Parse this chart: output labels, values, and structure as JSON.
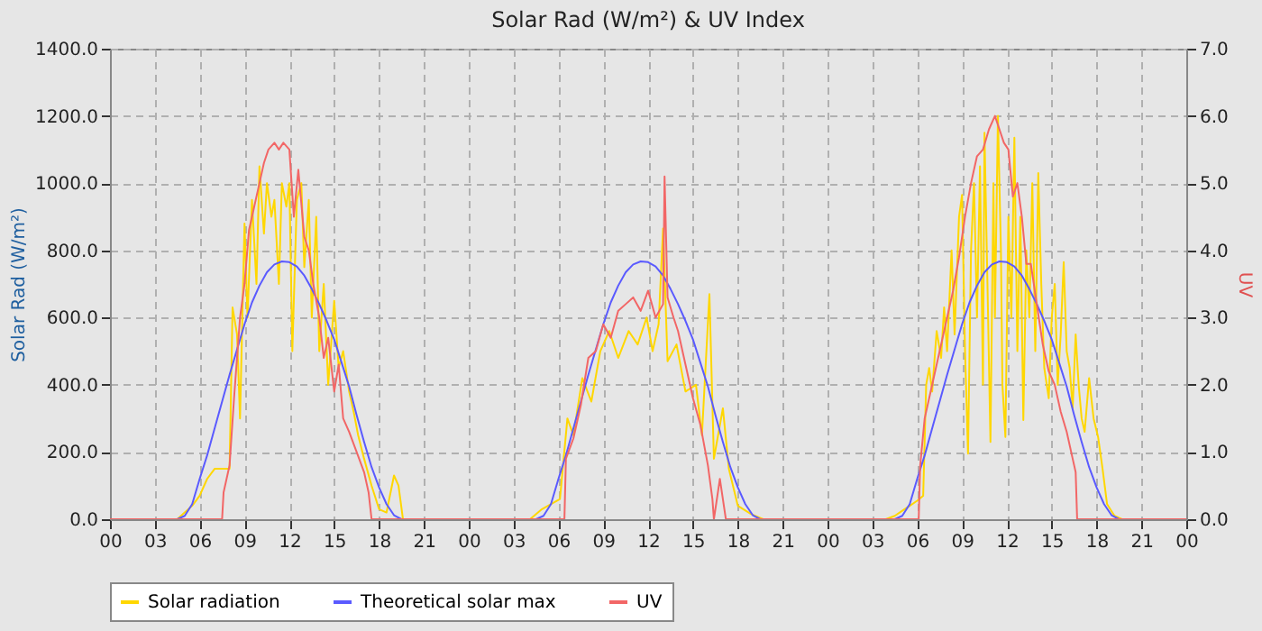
{
  "chart_data": {
    "type": "line",
    "title": "Solar Rad (W/m²) &  UV Index",
    "ylabel": "Solar Rad (W/m²)",
    "y2label": "UV",
    "xlim": [
      0,
      72
    ],
    "xticks": [
      {
        "value": 0,
        "label": "00"
      },
      {
        "value": 3,
        "label": "03"
      },
      {
        "value": 6,
        "label": "06"
      },
      {
        "value": 9,
        "label": "09"
      },
      {
        "value": 12,
        "label": "12"
      },
      {
        "value": 15,
        "label": "15"
      },
      {
        "value": 18,
        "label": "18"
      },
      {
        "value": 21,
        "label": "21"
      },
      {
        "value": 24,
        "label": "00"
      },
      {
        "value": 27,
        "label": "03"
      },
      {
        "value": 30,
        "label": "06"
      },
      {
        "value": 33,
        "label": "09"
      },
      {
        "value": 36,
        "label": "12"
      },
      {
        "value": 39,
        "label": "15"
      },
      {
        "value": 42,
        "label": "18"
      },
      {
        "value": 45,
        "label": "21"
      },
      {
        "value": 48,
        "label": "00"
      },
      {
        "value": 51,
        "label": "03"
      },
      {
        "value": 54,
        "label": "06"
      },
      {
        "value": 57,
        "label": "09"
      },
      {
        "value": 60,
        "label": "12"
      },
      {
        "value": 63,
        "label": "15"
      },
      {
        "value": 66,
        "label": "18"
      },
      {
        "value": 69,
        "label": "21"
      },
      {
        "value": 72,
        "label": "00"
      }
    ],
    "ylim": [
      0,
      1400
    ],
    "yticks": [
      {
        "value": 0,
        "label": "0.0"
      },
      {
        "value": 200,
        "label": "200.0"
      },
      {
        "value": 400,
        "label": "400.0"
      },
      {
        "value": 600,
        "label": "600.0"
      },
      {
        "value": 800,
        "label": "800.0"
      },
      {
        "value": 1000,
        "label": "1000.0"
      },
      {
        "value": 1200,
        "label": "1200.0"
      },
      {
        "value": 1400,
        "label": "1400.0"
      }
    ],
    "y2lim": [
      0,
      7
    ],
    "y2ticks": [
      {
        "value": 0,
        "label": "0.0"
      },
      {
        "value": 1,
        "label": "1.0"
      },
      {
        "value": 2,
        "label": "2.0"
      },
      {
        "value": 3,
        "label": "3.0"
      },
      {
        "value": 4,
        "label": "4.0"
      },
      {
        "value": 5,
        "label": "5.0"
      },
      {
        "value": 6,
        "label": "6.0"
      },
      {
        "value": 7,
        "label": "7.0"
      }
    ],
    "grid": true,
    "legend": "bottom",
    "line_style": "solid",
    "marker": "none",
    "series": [
      {
        "name": "Solar radiation",
        "color": "#ffd700",
        "x": [
          0,
          4.5,
          5,
          5.5,
          6,
          6.5,
          7,
          7.5,
          8,
          8.2,
          8.5,
          8.7,
          9,
          9.2,
          9.5,
          9.8,
          10,
          10.3,
          10.5,
          10.8,
          11,
          11.3,
          11.5,
          11.8,
          12,
          12.2,
          12.5,
          12.8,
          13,
          13.3,
          13.5,
          13.8,
          14,
          14.3,
          14.6,
          15,
          15.3,
          15.6,
          16,
          16.3,
          16.6,
          17,
          17.5,
          18,
          18.5,
          19,
          19.3,
          19.6,
          28.1,
          28.9,
          30.1,
          30.6,
          31,
          31.6,
          32.2,
          32.8,
          33.4,
          34,
          34.7,
          35.3,
          35.9,
          36.3,
          36.7,
          37,
          37.3,
          37.9,
          38.5,
          39.2,
          39.6,
          40.1,
          40.4,
          41,
          41.4,
          42,
          42.9,
          43.7,
          51.9,
          52.5,
          53,
          53.5,
          54,
          54.4,
          54.6,
          54.8,
          55,
          55.3,
          55.6,
          55.8,
          56,
          56.3,
          56.5,
          56.8,
          57,
          57.2,
          57.4,
          57.6,
          57.8,
          58,
          58.2,
          58.4,
          58.5,
          58.7,
          58.9,
          59.1,
          59.2,
          59.4,
          59.6,
          59.7,
          59.9,
          60.1,
          60.3,
          60.5,
          60.7,
          60.9,
          61.1,
          61.3,
          61.5,
          61.7,
          61.9,
          62.1,
          62.3,
          62.5,
          62.8,
          63,
          63.2,
          63.4,
          63.6,
          63.8,
          64,
          64.2,
          64.4,
          64.6,
          64.8,
          65,
          65.2,
          65.5,
          65.8,
          66.1,
          66.4,
          66.7,
          67.2,
          67.7,
          72
        ],
        "values": [
          0,
          0,
          20,
          40,
          70,
          120,
          150,
          150,
          150,
          630,
          550,
          300,
          880,
          600,
          950,
          700,
          1050,
          850,
          1000,
          900,
          950,
          700,
          1000,
          930,
          1000,
          500,
          950,
          1000,
          750,
          950,
          600,
          900,
          500,
          700,
          400,
          650,
          450,
          500,
          380,
          320,
          250,
          180,
          100,
          30,
          20,
          130,
          100,
          0,
          0,
          30,
          60,
          300,
          250,
          420,
          350,
          500,
          560,
          480,
          560,
          520,
          600,
          500,
          580,
          865,
          470,
          520,
          380,
          400,
          250,
          670,
          180,
          330,
          150,
          40,
          15,
          0,
          0,
          10,
          25,
          40,
          55,
          70,
          400,
          450,
          380,
          560,
          480,
          630,
          500,
          800,
          550,
          900,
          965,
          500,
          195,
          800,
          1000,
          600,
          1050,
          400,
          1150,
          700,
          230,
          1000,
          600,
          1200,
          800,
          400,
          245,
          900,
          600,
          1135,
          500,
          900,
          295,
          800,
          600,
          1000,
          500,
          1030,
          700,
          450,
          360,
          600,
          700,
          400,
          550,
          765,
          500,
          450,
          330,
          550,
          400,
          300,
          260,
          420,
          300,
          245,
          150,
          45,
          10,
          0,
          0
        ]
      },
      {
        "name": "Theoretical solar max",
        "color": "#5a5aff",
        "x": [
          0,
          4.5,
          5,
          5.5,
          6,
          6.5,
          7,
          7.5,
          8,
          8.5,
          9,
          9.5,
          10,
          10.5,
          11,
          11.5,
          12,
          12.5,
          13,
          13.5,
          14,
          14.5,
          15,
          15.5,
          16,
          16.5,
          17,
          17.5,
          18,
          18.5,
          19,
          19.5,
          28.5,
          29,
          29.5,
          30,
          30.5,
          31,
          31.5,
          32,
          32.5,
          33,
          33.5,
          34,
          34.5,
          35,
          35.5,
          36,
          36.5,
          37,
          37.5,
          38,
          38.5,
          39,
          39.5,
          40,
          40.5,
          41,
          41.5,
          42,
          42.5,
          43,
          43.5,
          52.5,
          53,
          53.5,
          54,
          54.5,
          55,
          55.5,
          56,
          56.5,
          57,
          57.5,
          58,
          58.5,
          59,
          59.5,
          60,
          60.5,
          61,
          61.5,
          62,
          62.5,
          63,
          63.5,
          64,
          64.5,
          65,
          65.5,
          66,
          66.5,
          67,
          67.5,
          72
        ],
        "values": [
          0,
          0,
          10,
          45,
          120,
          190,
          270,
          350,
          430,
          505,
          580,
          645,
          695,
          735,
          758,
          767,
          765,
          752,
          725,
          685,
          640,
          590,
          535,
          465,
          395,
          310,
          230,
          155,
          95,
          45,
          12,
          0,
          0,
          10,
          45,
          120,
          190,
          270,
          350,
          430,
          505,
          580,
          645,
          695,
          735,
          758,
          767,
          765,
          752,
          725,
          685,
          640,
          590,
          535,
          465,
          395,
          310,
          230,
          155,
          95,
          45,
          12,
          0,
          0,
          10,
          45,
          120,
          190,
          270,
          350,
          430,
          505,
          580,
          645,
          695,
          735,
          758,
          767,
          765,
          752,
          725,
          685,
          640,
          590,
          535,
          465,
          395,
          310,
          230,
          155,
          95,
          45,
          12,
          0,
          0
        ]
      },
      {
        "name": "UV",
        "color": "#f26666",
        "axis": "y2",
        "x": [
          0,
          7.5,
          7.6,
          8,
          8.3,
          8.7,
          9,
          9.3,
          9.6,
          10,
          10.3,
          10.6,
          11,
          11.3,
          11.6,
          12,
          12.3,
          12.6,
          13,
          13.3,
          13.6,
          14,
          14.3,
          14.6,
          15,
          15.3,
          15.6,
          16,
          16.5,
          17,
          17.3,
          17.5,
          30.4,
          30.5,
          31,
          31.5,
          32,
          32.5,
          33,
          33.5,
          34,
          34.5,
          35,
          35.5,
          36,
          36.5,
          37,
          37.1,
          37.3,
          37.7,
          38,
          38.5,
          39,
          39.5,
          40,
          40.3,
          40.4,
          40.8,
          41,
          41.2,
          54.1,
          54.2,
          54.5,
          54.8,
          55.2,
          55.6,
          56,
          56.4,
          56.8,
          57.2,
          57.6,
          58,
          58.4,
          58.8,
          59.2,
          59.5,
          59.8,
          60.1,
          60.4,
          60.7,
          61,
          61.3,
          61.6,
          62,
          62.4,
          62.8,
          63.2,
          63.6,
          64,
          64.4,
          64.6,
          64.7,
          72
        ],
        "values": [
          0,
          0,
          0.4,
          0.8,
          1.8,
          3.0,
          3.5,
          4.3,
          4.6,
          5.0,
          5.3,
          5.5,
          5.6,
          5.5,
          5.6,
          5.5,
          4.5,
          5.2,
          4.2,
          4.0,
          3.5,
          3.0,
          2.4,
          2.7,
          1.9,
          2.3,
          1.5,
          1.3,
          1.0,
          0.7,
          0.4,
          0,
          0,
          0.9,
          1.2,
          1.7,
          2.4,
          2.5,
          2.9,
          2.7,
          3.1,
          3.2,
          3.3,
          3.1,
          3.4,
          3.0,
          3.2,
          5.1,
          3.3,
          3.0,
          2.8,
          2.3,
          1.8,
          1.4,
          0.8,
          0.3,
          0,
          0.6,
          0.3,
          0,
          0,
          0.8,
          1.5,
          1.8,
          2.2,
          2.6,
          3.0,
          3.4,
          3.9,
          4.5,
          5.0,
          5.4,
          5.5,
          5.8,
          6.0,
          5.8,
          5.6,
          5.5,
          4.8,
          5.0,
          4.5,
          3.8,
          3.8,
          3.2,
          2.6,
          2.2,
          2.0,
          1.6,
          1.3,
          0.9,
          0.7,
          0,
          0
        ]
      }
    ]
  }
}
